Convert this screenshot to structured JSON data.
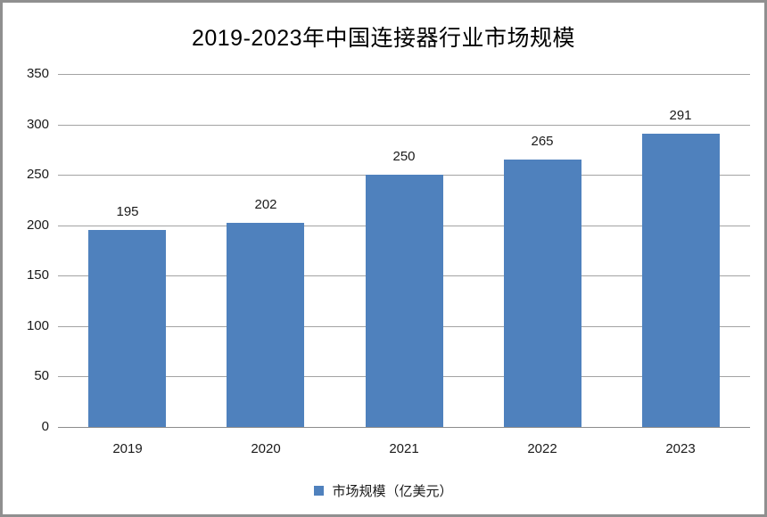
{
  "chart_data": {
    "type": "bar",
    "title": "2019-2023年中国连接器行业市场规模",
    "categories": [
      "2019",
      "2020",
      "2021",
      "2022",
      "2023"
    ],
    "values": [
      195,
      202,
      250,
      265,
      291
    ],
    "series_name": "市场规模（亿美元）",
    "legend": {
      "label": "市场规模（亿美元）",
      "position": "bottom"
    },
    "xlabel": "",
    "ylabel": "",
    "ylim": [
      0,
      350
    ],
    "ytick_step": 50,
    "ytick_labels": [
      "0",
      "50",
      "100",
      "150",
      "200",
      "250",
      "300",
      "350"
    ],
    "grid": true,
    "colors": {
      "bar": "#4f81bd",
      "gridline": "#a3a3a3",
      "axis": "#8c8c8c",
      "frame": "#8f8f8f",
      "text": "#000000"
    }
  }
}
